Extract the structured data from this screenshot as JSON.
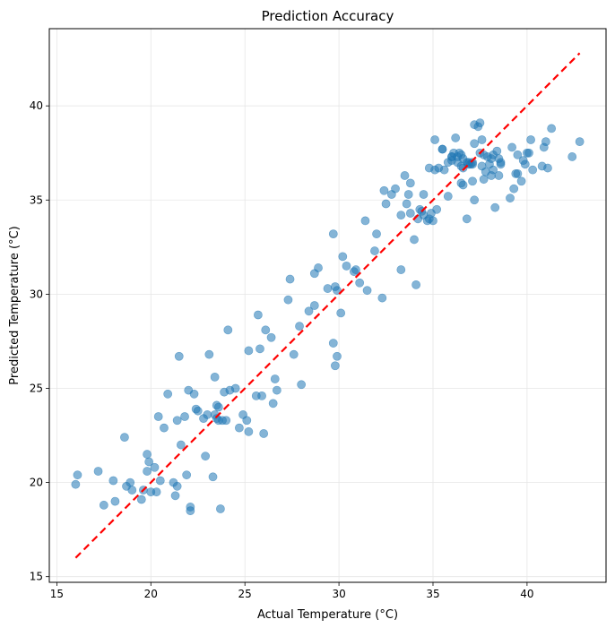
{
  "chart_data": {
    "type": "scatter",
    "title": "Prediction Accuracy",
    "xlabel": "Actual Temperature (°C)",
    "ylabel": "Predicted Temperature (°C)",
    "xlim": [
      14.6,
      44.2
    ],
    "ylim": [
      14.7,
      44.1
    ],
    "xticks": [
      "15",
      "20",
      "25",
      "30",
      "35",
      "40"
    ],
    "yticks": [
      "15",
      "20",
      "25",
      "30",
      "35",
      "40"
    ],
    "grid": true,
    "colors": {
      "points": "#1f77b4",
      "reference_line": "#ff0000"
    },
    "reference_line": {
      "from": [
        16.0,
        16.0
      ],
      "to": [
        42.8,
        42.8
      ],
      "style": "dashed"
    },
    "points": [
      [
        16.0,
        19.9
      ],
      [
        16.1,
        20.4
      ],
      [
        17.2,
        20.6
      ],
      [
        17.5,
        18.8
      ],
      [
        18.0,
        20.1
      ],
      [
        18.1,
        19.0
      ],
      [
        18.6,
        22.4
      ],
      [
        18.7,
        19.8
      ],
      [
        18.9,
        20.0
      ],
      [
        19.0,
        19.6
      ],
      [
        19.5,
        19.1
      ],
      [
        19.6,
        19.6
      ],
      [
        19.8,
        20.6
      ],
      [
        19.8,
        21.5
      ],
      [
        19.9,
        21.1
      ],
      [
        20.0,
        19.5
      ],
      [
        20.2,
        20.8
      ],
      [
        20.3,
        19.5
      ],
      [
        20.4,
        23.5
      ],
      [
        20.5,
        20.1
      ],
      [
        20.7,
        22.9
      ],
      [
        20.9,
        24.7
      ],
      [
        21.2,
        20.0
      ],
      [
        21.3,
        19.3
      ],
      [
        21.4,
        23.3
      ],
      [
        21.4,
        19.8
      ],
      [
        21.5,
        26.7
      ],
      [
        21.6,
        22.0
      ],
      [
        21.8,
        23.5
      ],
      [
        21.9,
        20.4
      ],
      [
        22.0,
        24.9
      ],
      [
        22.1,
        18.7
      ],
      [
        22.1,
        18.5
      ],
      [
        22.3,
        24.7
      ],
      [
        22.4,
        23.9
      ],
      [
        22.5,
        23.8
      ],
      [
        22.8,
        23.4
      ],
      [
        22.9,
        21.4
      ],
      [
        23.0,
        23.6
      ],
      [
        23.1,
        26.8
      ],
      [
        23.3,
        20.3
      ],
      [
        23.4,
        23.6
      ],
      [
        23.4,
        25.6
      ],
      [
        23.5,
        24.1
      ],
      [
        23.5,
        23.4
      ],
      [
        23.6,
        23.3
      ],
      [
        23.6,
        24.0
      ],
      [
        23.7,
        18.6
      ],
      [
        23.8,
        23.3
      ],
      [
        23.9,
        24.8
      ],
      [
        24.0,
        23.3
      ],
      [
        24.1,
        28.1
      ],
      [
        24.2,
        24.9
      ],
      [
        24.5,
        25.0
      ],
      [
        24.7,
        22.9
      ],
      [
        24.9,
        23.6
      ],
      [
        25.1,
        23.3
      ],
      [
        25.2,
        22.7
      ],
      [
        25.2,
        27.0
      ],
      [
        25.6,
        24.6
      ],
      [
        25.7,
        28.9
      ],
      [
        25.8,
        27.1
      ],
      [
        25.9,
        24.6
      ],
      [
        26.0,
        22.6
      ],
      [
        26.1,
        28.1
      ],
      [
        26.4,
        27.7
      ],
      [
        26.5,
        24.2
      ],
      [
        26.6,
        25.5
      ],
      [
        26.7,
        24.9
      ],
      [
        27.3,
        29.7
      ],
      [
        27.4,
        30.8
      ],
      [
        27.6,
        26.8
      ],
      [
        27.9,
        28.3
      ],
      [
        28.0,
        25.2
      ],
      [
        28.4,
        29.1
      ],
      [
        28.7,
        29.4
      ],
      [
        28.7,
        31.1
      ],
      [
        28.9,
        31.4
      ],
      [
        29.4,
        30.3
      ],
      [
        29.7,
        33.2
      ],
      [
        29.7,
        27.4
      ],
      [
        29.8,
        26.2
      ],
      [
        29.8,
        30.4
      ],
      [
        29.9,
        26.7
      ],
      [
        29.9,
        30.2
      ],
      [
        30.1,
        29.0
      ],
      [
        30.2,
        32.0
      ],
      [
        30.4,
        31.5
      ],
      [
        30.8,
        31.2
      ],
      [
        30.9,
        31.3
      ],
      [
        31.1,
        30.6
      ],
      [
        31.4,
        33.9
      ],
      [
        31.5,
        30.2
      ],
      [
        31.9,
        32.3
      ],
      [
        32.0,
        33.2
      ],
      [
        32.3,
        29.8
      ],
      [
        32.4,
        35.5
      ],
      [
        32.5,
        34.8
      ],
      [
        32.8,
        35.3
      ],
      [
        33.0,
        35.6
      ],
      [
        33.3,
        31.3
      ],
      [
        33.3,
        34.2
      ],
      [
        33.5,
        36.3
      ],
      [
        33.6,
        34.8
      ],
      [
        33.7,
        35.3
      ],
      [
        33.8,
        35.9
      ],
      [
        33.8,
        34.3
      ],
      [
        34.0,
        32.9
      ],
      [
        34.1,
        30.5
      ],
      [
        34.2,
        34.0
      ],
      [
        34.3,
        34.5
      ],
      [
        34.4,
        34.4
      ],
      [
        34.5,
        35.3
      ],
      [
        34.5,
        34.2
      ],
      [
        34.7,
        33.9
      ],
      [
        34.8,
        34.0
      ],
      [
        34.8,
        36.7
      ],
      [
        34.9,
        34.3
      ],
      [
        35.0,
        33.9
      ],
      [
        35.1,
        38.2
      ],
      [
        35.1,
        36.6
      ],
      [
        35.2,
        34.5
      ],
      [
        35.3,
        36.7
      ],
      [
        35.5,
        37.7
      ],
      [
        35.5,
        37.7
      ],
      [
        35.6,
        36.6
      ],
      [
        35.8,
        35.2
      ],
      [
        35.8,
        37.0
      ],
      [
        36.0,
        37.3
      ],
      [
        36.0,
        37.3
      ],
      [
        36.0,
        37.1
      ],
      [
        36.1,
        37.5
      ],
      [
        36.2,
        38.3
      ],
      [
        36.3,
        37.3
      ],
      [
        36.3,
        37.0
      ],
      [
        36.4,
        37.5
      ],
      [
        36.5,
        37.4
      ],
      [
        36.5,
        36.8
      ],
      [
        36.5,
        35.9
      ],
      [
        36.6,
        35.8
      ],
      [
        36.6,
        37.2
      ],
      [
        36.6,
        36.7
      ],
      [
        36.8,
        37.0
      ],
      [
        36.8,
        34.0
      ],
      [
        36.9,
        36.9
      ],
      [
        36.9,
        37.0
      ],
      [
        37.0,
        36.9
      ],
      [
        37.1,
        36.0
      ],
      [
        37.1,
        36.9
      ],
      [
        37.1,
        37.0
      ],
      [
        37.2,
        39.0
      ],
      [
        37.2,
        35.0
      ],
      [
        37.2,
        38.0
      ],
      [
        37.4,
        38.9
      ],
      [
        37.5,
        37.5
      ],
      [
        37.5,
        39.1
      ],
      [
        37.6,
        36.8
      ],
      [
        37.6,
        38.2
      ],
      [
        37.7,
        36.1
      ],
      [
        37.7,
        37.4
      ],
      [
        37.8,
        36.5
      ],
      [
        37.9,
        37.3
      ],
      [
        38.0,
        36.9
      ],
      [
        38.1,
        37.2
      ],
      [
        38.1,
        36.3
      ],
      [
        38.2,
        37.4
      ],
      [
        38.2,
        36.6
      ],
      [
        38.3,
        34.6
      ],
      [
        38.4,
        37.6
      ],
      [
        38.5,
        37.2
      ],
      [
        38.5,
        36.3
      ],
      [
        38.6,
        37.0
      ],
      [
        38.6,
        36.9
      ],
      [
        39.1,
        35.1
      ],
      [
        39.2,
        37.8
      ],
      [
        39.3,
        35.6
      ],
      [
        39.4,
        36.4
      ],
      [
        39.5,
        36.4
      ],
      [
        39.5,
        37.4
      ],
      [
        39.7,
        36.0
      ],
      [
        39.8,
        37.1
      ],
      [
        39.9,
        36.9
      ],
      [
        40.0,
        37.5
      ],
      [
        40.1,
        37.5
      ],
      [
        40.2,
        38.2
      ],
      [
        40.3,
        36.6
      ],
      [
        40.8,
        36.8
      ],
      [
        40.9,
        37.8
      ],
      [
        41.0,
        38.1
      ],
      [
        41.1,
        36.7
      ],
      [
        41.3,
        38.8
      ],
      [
        42.4,
        37.3
      ],
      [
        42.8,
        38.1
      ]
    ]
  }
}
